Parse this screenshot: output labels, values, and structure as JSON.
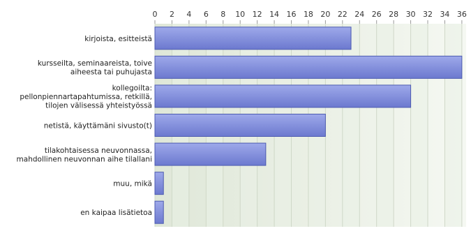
{
  "chart_data": {
    "type": "bar",
    "orientation": "horizontal",
    "categories": [
      [
        "kirjoista, esitteistä"
      ],
      [
        "kursseilta, seminaareista, toive",
        "aiheesta tai puhujasta"
      ],
      [
        "kollegoilta:",
        "pellonpiennartapahtumissa, retkillä,",
        "tilojen välisessä yhteistyössä"
      ],
      [
        "netistä, käyttämäni sivusto(t)"
      ],
      [
        "tilakohtaisessa neuvonnassa,",
        "mahdollinen neuvonnan aihe tilallani"
      ],
      [
        "muu, mikä"
      ],
      [
        "en kaipaa lisätietoa"
      ]
    ],
    "values": [
      23,
      36,
      30,
      20,
      13,
      1,
      1
    ],
    "xlim": [
      0,
      36.5
    ],
    "xticks": [
      0,
      2,
      4,
      6,
      8,
      10,
      12,
      14,
      16,
      18,
      20,
      22,
      24,
      26,
      28,
      30,
      32,
      34,
      36
    ],
    "tick_labels": [
      "0",
      "2",
      "4",
      "6",
      "8",
      "10",
      "12",
      "14",
      "16",
      "18",
      "20",
      "22",
      "24",
      "26",
      "28",
      "30",
      "32",
      "34",
      "36"
    ],
    "axis_position": "top",
    "grid": true,
    "colors": {
      "bar_fill_top": "#9ea9ea",
      "bar_fill_bottom": "#6c79cf",
      "bar_stroke": "#4d5bb0",
      "grid_band": "#eaf0e5",
      "grid_line": "#cfd8c8"
    }
  }
}
